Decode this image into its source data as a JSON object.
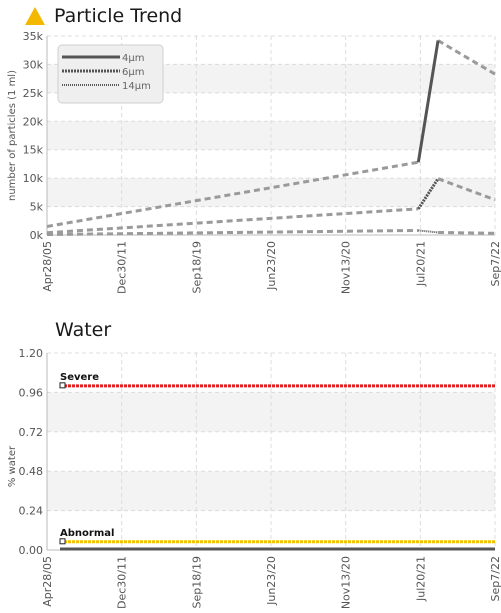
{
  "chart_data": [
    {
      "type": "line",
      "title": "Particle Trend",
      "ylabel": "number of particles (1 ml)",
      "ylim": [
        0,
        35000
      ],
      "yticks": [
        "0k",
        "5k",
        "10k",
        "15k",
        "20k",
        "25k",
        "30k",
        "35k"
      ],
      "x_tick_labels": [
        "Apr28/05",
        "Dec30/11",
        "Sep18/19",
        "Jun23/20",
        "Nov13/20",
        "Jul20/21",
        "Sep7/22"
      ],
      "x": [
        "Apr28/05",
        "Sep18/19",
        "Jun23/20",
        "Sep7/22"
      ],
      "series": [
        {
          "name": "4μm",
          "values": [
            1500,
            12800,
            34200,
            28300
          ]
        },
        {
          "name": "6μm",
          "values": [
            400,
            4600,
            9900,
            6200
          ]
        },
        {
          "name": "14μm",
          "values": [
            80,
            800,
            450,
            300
          ]
        }
      ],
      "grid": true,
      "legend": "top-left",
      "colors": {
        "series": "#555555",
        "projection": "#9a9a9a",
        "band": "#f3f3f3"
      }
    },
    {
      "type": "line",
      "title": "Water",
      "ylabel": "% water",
      "ylim": [
        0,
        1.2
      ],
      "yticks": [
        "0.00",
        "0.24",
        "0.48",
        "0.72",
        "0.96",
        "1.20"
      ],
      "x_tick_labels": [
        "Apr28/05",
        "Dec30/11",
        "Sep18/19",
        "Jun23/20",
        "Nov13/20",
        "Jul20/21",
        "Sep7/22"
      ],
      "series": [
        {
          "name": "Severe",
          "values": [
            1.0,
            1.0
          ],
          "x": [
            "Apr28/05",
            "Sep7/22"
          ]
        },
        {
          "name": "Abnormal",
          "values": [
            0.05,
            0.05
          ],
          "x": [
            "Apr28/05",
            "Sep7/22"
          ]
        }
      ],
      "grid": true,
      "colors": {
        "severe": "#e02020",
        "abnormal": "#f2c200",
        "band": "#f3f3f3",
        "baseline": "#555555"
      }
    }
  ],
  "icons": {
    "title_icon": "warning-triangle-icon",
    "title_icon_color": "#f5b800"
  }
}
